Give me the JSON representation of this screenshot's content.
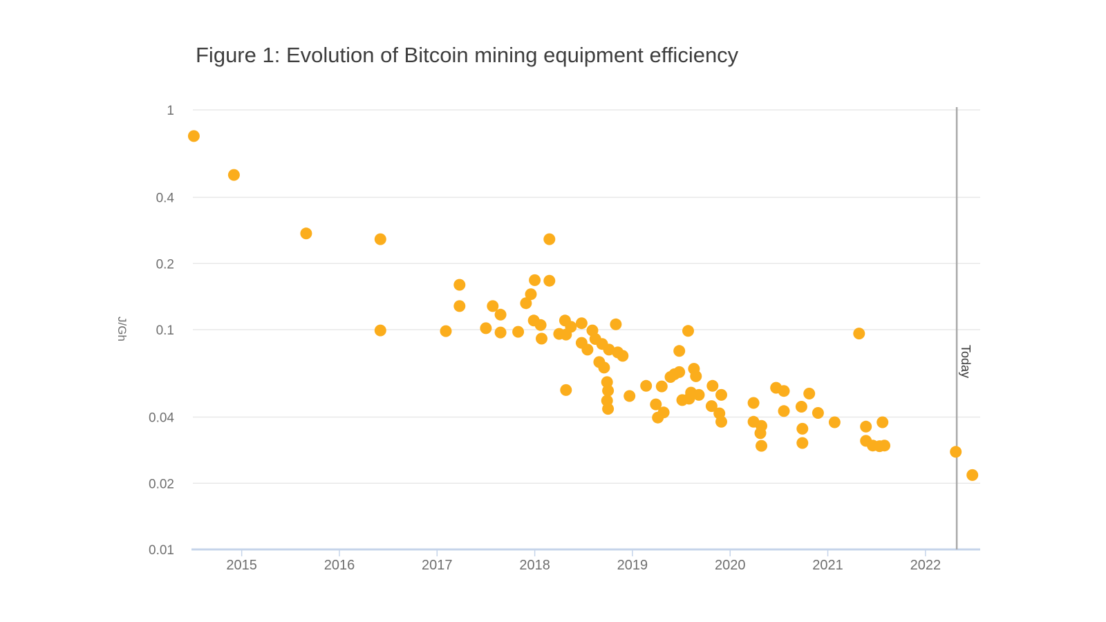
{
  "figure": {
    "title": "Figure 1: Evolution of Bitcoin mining equipment efficiency",
    "today_label": "Today"
  },
  "colors": {
    "point": "#fbad1c",
    "grid": "#e8e8e8",
    "axis_line": "#c5d4ea",
    "tick_mark": "#c5d4ea",
    "today_line": "#a8a8a8",
    "title_text": "#3d3d3d",
    "axis_text": "#6e6e6e"
  },
  "chart_data": {
    "type": "scatter",
    "title": "Figure 1: Evolution of Bitcoin mining equipment efficiency",
    "xlabel": "",
    "ylabel": "J/Gh",
    "grid": true,
    "legend": false,
    "x_axis": {
      "scale": "linear",
      "min": 2014.5,
      "max": 2022.56,
      "ticks": [
        2015,
        2016,
        2017,
        2018,
        2019,
        2020,
        2021,
        2022
      ],
      "tick_labels": [
        "2015",
        "2016",
        "2017",
        "2018",
        "2019",
        "2020",
        "2021",
        "2022"
      ]
    },
    "y_axis": {
      "scale": "log",
      "min": 0.01,
      "max": 1,
      "ticks": [
        1,
        0.4,
        0.2,
        0.1,
        0.04,
        0.02,
        0.01
      ],
      "tick_labels": [
        "1",
        "0.4",
        "0.2",
        "0.1",
        "0.04",
        "0.02",
        "0.01"
      ]
    },
    "annotations": [
      {
        "type": "vertical-line",
        "label": "Today",
        "x": 2022.32
      }
    ],
    "points": [
      [
        2014.51,
        0.76
      ],
      [
        2014.92,
        0.506
      ],
      [
        2015.66,
        0.274
      ],
      [
        2016.42,
        0.258
      ],
      [
        2016.42,
        0.0992
      ],
      [
        2017.09,
        0.0985
      ],
      [
        2017.23,
        0.16
      ],
      [
        2017.23,
        0.128
      ],
      [
        2017.5,
        0.1015
      ],
      [
        2017.57,
        0.128
      ],
      [
        2017.65,
        0.117
      ],
      [
        2017.65,
        0.0971
      ],
      [
        2017.83,
        0.0978
      ],
      [
        2017.91,
        0.132
      ],
      [
        2017.96,
        0.145
      ],
      [
        2018.0,
        0.168
      ],
      [
        2018.15,
        0.167
      ],
      [
        2018.15,
        0.258
      ],
      [
        2017.99,
        0.11
      ],
      [
        2018.06,
        0.105
      ],
      [
        2018.07,
        0.091
      ],
      [
        2018.25,
        0.0957
      ],
      [
        2018.32,
        0.095
      ],
      [
        2018.31,
        0.11
      ],
      [
        2018.37,
        0.103
      ],
      [
        2018.48,
        0.107
      ],
      [
        2018.59,
        0.0992
      ],
      [
        2018.48,
        0.0871
      ],
      [
        2018.54,
        0.0811
      ],
      [
        2018.62,
        0.0907
      ],
      [
        2018.69,
        0.0861
      ],
      [
        2018.76,
        0.0811
      ],
      [
        2018.83,
        0.1057
      ],
      [
        2018.85,
        0.0788
      ],
      [
        2018.9,
        0.076
      ],
      [
        2018.66,
        0.0712
      ],
      [
        2018.71,
        0.0672
      ],
      [
        2018.74,
        0.0577
      ],
      [
        2018.75,
        0.0528
      ],
      [
        2018.74,
        0.0475
      ],
      [
        2018.75,
        0.0436
      ],
      [
        2018.32,
        0.0531
      ],
      [
        2018.97,
        0.0499
      ],
      [
        2019.14,
        0.0555
      ],
      [
        2019.24,
        0.0457
      ],
      [
        2019.26,
        0.0398
      ],
      [
        2019.32,
        0.042
      ],
      [
        2019.3,
        0.0552
      ],
      [
        2019.39,
        0.0609
      ],
      [
        2019.43,
        0.0627
      ],
      [
        2019.48,
        0.0641
      ],
      [
        2019.48,
        0.08
      ],
      [
        2019.57,
        0.0987
      ],
      [
        2019.63,
        0.0664
      ],
      [
        2019.65,
        0.0614
      ],
      [
        2019.51,
        0.0478
      ],
      [
        2019.58,
        0.0485
      ],
      [
        2019.6,
        0.0517
      ],
      [
        2019.68,
        0.0505
      ],
      [
        2019.82,
        0.0555
      ],
      [
        2019.91,
        0.0505
      ],
      [
        2019.81,
        0.0449
      ],
      [
        2019.89,
        0.0416
      ],
      [
        2019.91,
        0.0381
      ],
      [
        2020.24,
        0.0464
      ],
      [
        2020.24,
        0.0381
      ],
      [
        2020.32,
        0.0365
      ],
      [
        2020.31,
        0.0338
      ],
      [
        2020.32,
        0.0296
      ],
      [
        2020.47,
        0.0544
      ],
      [
        2020.55,
        0.0526
      ],
      [
        2020.55,
        0.0426
      ],
      [
        2020.73,
        0.0446
      ],
      [
        2020.81,
        0.0512
      ],
      [
        2020.9,
        0.0418
      ],
      [
        2020.74,
        0.0354
      ],
      [
        2020.74,
        0.0305
      ],
      [
        2021.07,
        0.0379
      ],
      [
        2021.32,
        0.096
      ],
      [
        2021.39,
        0.0362
      ],
      [
        2021.56,
        0.0379
      ],
      [
        2021.39,
        0.0312
      ],
      [
        2021.46,
        0.0297
      ],
      [
        2021.53,
        0.0295
      ],
      [
        2021.58,
        0.0297
      ],
      [
        2022.31,
        0.0278
      ],
      [
        2022.48,
        0.0218
      ]
    ]
  }
}
